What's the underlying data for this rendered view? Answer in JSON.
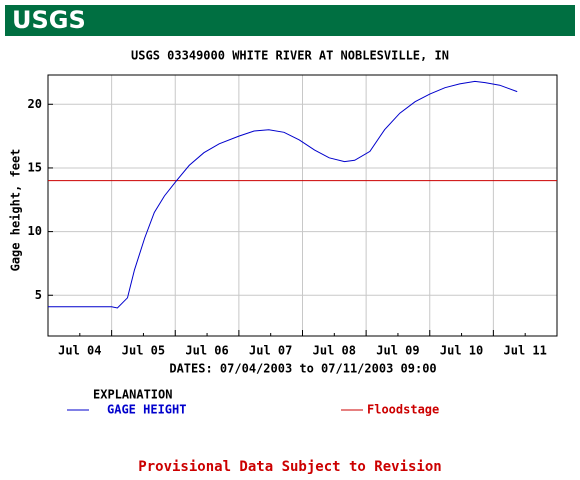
{
  "header": {
    "logo": "USGS"
  },
  "chart_data": {
    "type": "line",
    "title": "USGS 03349000 WHITE RIVER AT NOBLESVILLE, IN",
    "ylabel": "Gage height, feet",
    "xlabel": "DATES: 07/04/2003 to 07/11/2003 09:00",
    "legend_title": "EXPLANATION",
    "x": [
      0,
      0.5,
      1.0,
      1.09,
      1.25,
      1.36,
      1.52,
      1.67,
      1.83,
      2.02,
      2.22,
      2.45,
      2.69,
      3.0,
      3.24,
      3.47,
      3.71,
      3.95,
      4.19,
      4.42,
      4.66,
      4.82,
      5.06,
      5.29,
      5.53,
      5.77,
      6.0,
      6.24,
      6.47,
      6.71,
      6.87,
      7.1,
      7.375
    ],
    "series": [
      {
        "name": "GAGE HEIGHT",
        "color": "#0000cc",
        "values": [
          4.1,
          4.1,
          4.1,
          4.0,
          4.8,
          7.0,
          9.5,
          11.5,
          12.8,
          14.0,
          15.2,
          16.2,
          16.9,
          17.5,
          17.9,
          18.0,
          17.8,
          17.2,
          16.4,
          15.8,
          15.5,
          15.6,
          16.3,
          18.0,
          19.3,
          20.2,
          20.8,
          21.3,
          21.6,
          21.8,
          21.7,
          21.5,
          21.0
        ]
      }
    ],
    "floodstage": {
      "name": "Floodstage",
      "color": "#cc0000",
      "value": 14
    },
    "xlim": [
      0,
      8
    ],
    "xticks": [
      {
        "value": 0.5,
        "label": "Jul 04"
      },
      {
        "value": 1.5,
        "label": "Jul 05"
      },
      {
        "value": 2.5,
        "label": "Jul 06"
      },
      {
        "value": 3.5,
        "label": "Jul 07"
      },
      {
        "value": 4.5,
        "label": "Jul 08"
      },
      {
        "value": 5.5,
        "label": "Jul 09"
      },
      {
        "value": 6.5,
        "label": "Jul 10"
      },
      {
        "value": 7.5,
        "label": "Jul 11"
      }
    ],
    "xgrid": [
      1,
      2,
      3,
      4,
      5,
      6,
      7
    ],
    "ylim": [
      1.8,
      22.3
    ],
    "yticks": [
      5,
      10,
      15,
      20
    ],
    "grid": true
  },
  "footer": {
    "note": "Provisional Data Subject to Revision"
  }
}
